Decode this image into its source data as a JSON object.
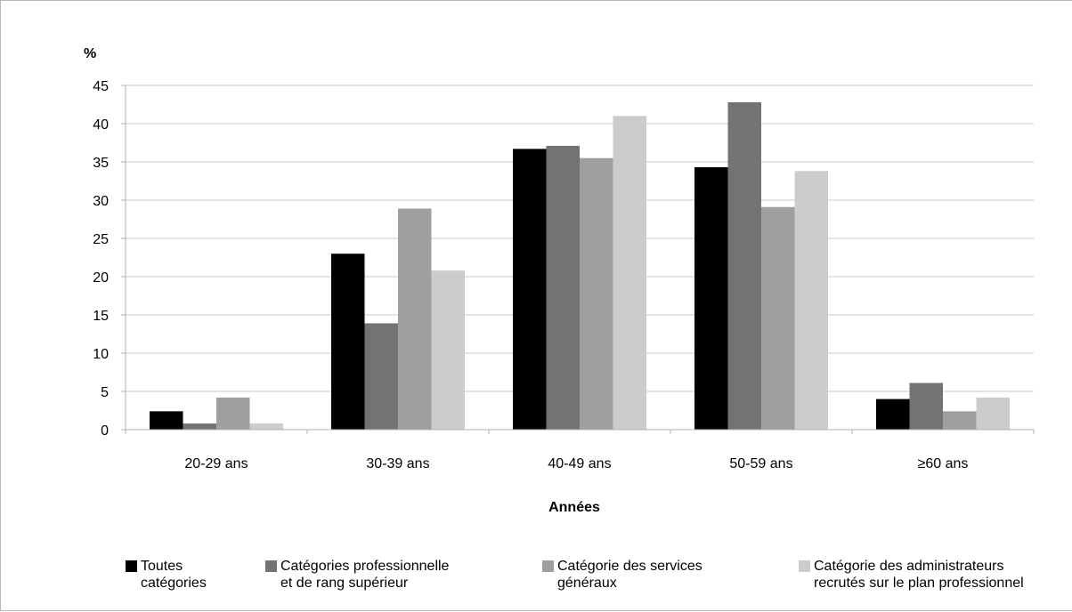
{
  "chart_data": {
    "type": "bar",
    "ylabel": "%",
    "xlabel": "Années",
    "ylim": [
      0,
      45
    ],
    "yticks": [
      "0",
      "5",
      "10",
      "15",
      "20",
      "25",
      "30",
      "35",
      "40",
      "45"
    ],
    "grid": true,
    "legend_position": "bottom",
    "categories": [
      "20-29 ans",
      "30-39 ans",
      "40-49 ans",
      "50-59 ans",
      "≥60 ans"
    ],
    "series": [
      {
        "name": "Toutes\ncatégories",
        "color": "#000000",
        "values": [
          2.4,
          23.0,
          36.7,
          34.3,
          4.0
        ]
      },
      {
        "name": "Catégories professionnelle\net de rang supérieur",
        "color": "#737373",
        "values": [
          0.8,
          13.9,
          37.1,
          42.8,
          6.1
        ]
      },
      {
        "name": "Catégorie des services\ngénéraux",
        "color": "#9f9f9f",
        "values": [
          4.2,
          28.9,
          35.5,
          29.1,
          2.4
        ]
      },
      {
        "name": "Catégorie des administrateurs\nrecrutés sur le plan professionnel",
        "color": "#cccccc",
        "values": [
          0.8,
          20.8,
          41.0,
          33.8,
          4.2
        ]
      }
    ]
  }
}
